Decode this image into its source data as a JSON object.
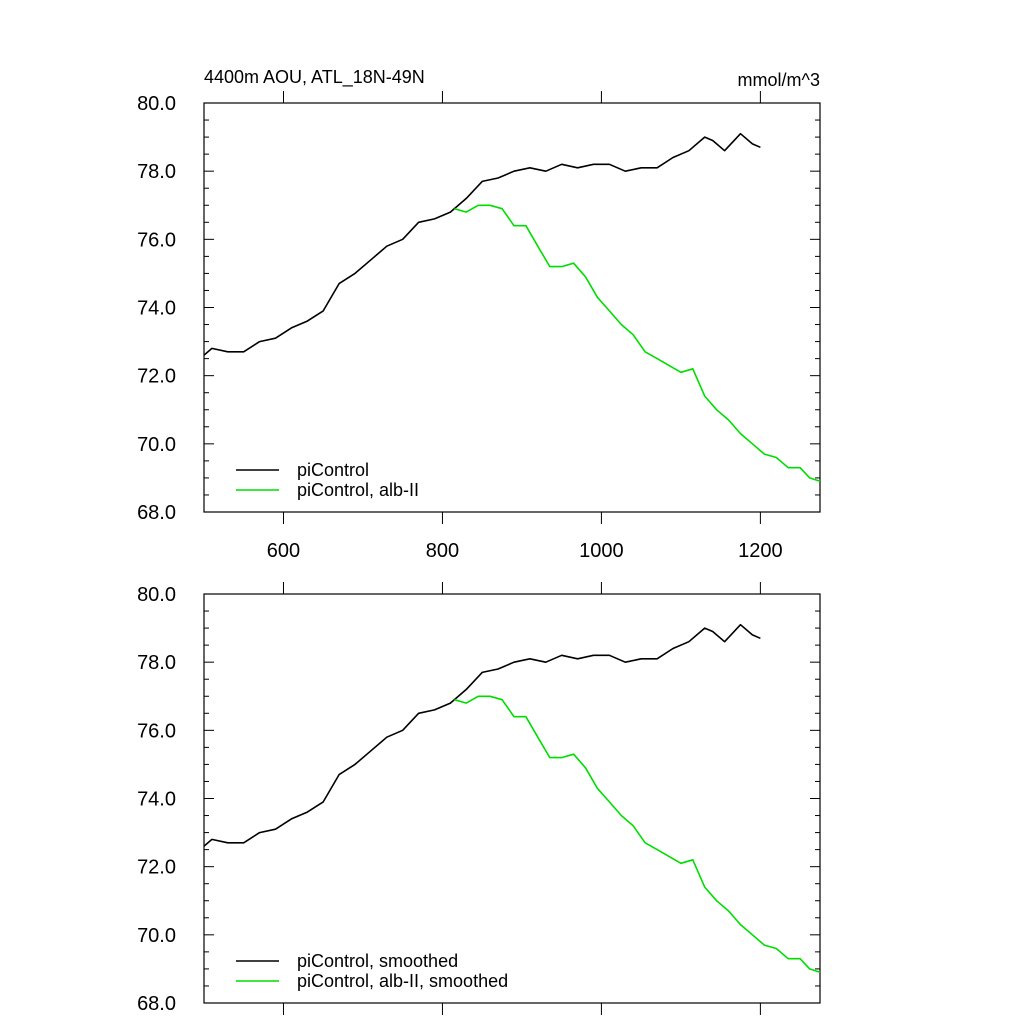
{
  "page": {
    "title_left": "4400m AOU, ATL_18N-49N",
    "title_right": "mmol/m^3"
  },
  "chart_data": [
    {
      "type": "line",
      "title": "4400m AOU, ATL_18N-49N",
      "units": "mmol/m^3",
      "xlim": [
        500,
        1275
      ],
      "ylim": [
        68,
        80
      ],
      "xticks": [
        600,
        800,
        1000,
        1200
      ],
      "xtick_labels": [
        "600",
        "800",
        "1000",
        "1200"
      ],
      "yticks": [
        68,
        70,
        72,
        74,
        76,
        78,
        80
      ],
      "ytick_labels": [
        "68.0",
        "70.0",
        "72.0",
        "74.0",
        "76.0",
        "78.0",
        "80.0"
      ],
      "legend_position": "bottom-left",
      "series": [
        {
          "name": "piControl",
          "color": "#000000",
          "x": [
            500,
            510,
            530,
            550,
            570,
            590,
            610,
            630,
            650,
            670,
            690,
            710,
            730,
            750,
            770,
            790,
            810,
            830,
            850,
            870,
            890,
            910,
            930,
            950,
            970,
            990,
            1010,
            1030,
            1050,
            1070,
            1090,
            1110,
            1130,
            1140,
            1155,
            1175,
            1190,
            1200
          ],
          "y": [
            72.6,
            72.8,
            72.7,
            72.7,
            73.0,
            73.1,
            73.4,
            73.6,
            73.9,
            74.7,
            75.0,
            75.4,
            75.8,
            76.0,
            76.5,
            76.6,
            76.8,
            77.2,
            77.7,
            77.8,
            78.0,
            78.1,
            78.0,
            78.2,
            78.1,
            78.2,
            78.2,
            78.0,
            78.1,
            78.1,
            78.4,
            78.6,
            79.0,
            78.9,
            78.6,
            79.1,
            78.8,
            78.7
          ]
        },
        {
          "name": "piControl, alb-II",
          "color": "#00dd00",
          "x": [
            815,
            830,
            845,
            860,
            875,
            890,
            905,
            920,
            935,
            950,
            965,
            980,
            995,
            1010,
            1025,
            1040,
            1055,
            1070,
            1085,
            1100,
            1115,
            1130,
            1145,
            1160,
            1175,
            1190,
            1205,
            1220,
            1235,
            1250,
            1262,
            1275
          ],
          "y": [
            76.9,
            76.8,
            77.0,
            77.0,
            76.9,
            76.4,
            76.4,
            75.8,
            75.2,
            75.2,
            75.3,
            74.9,
            74.3,
            73.9,
            73.5,
            73.2,
            72.7,
            72.5,
            72.3,
            72.1,
            72.2,
            71.4,
            71.0,
            70.7,
            70.3,
            70.0,
            69.7,
            69.6,
            69.3,
            69.3,
            69.0,
            68.9
          ]
        }
      ]
    },
    {
      "type": "line",
      "xlim": [
        500,
        1275
      ],
      "ylim": [
        68,
        80
      ],
      "xticks": [
        600,
        800,
        1000,
        1200
      ],
      "yticks": [
        68,
        70,
        72,
        74,
        76,
        78,
        80
      ],
      "ytick_labels": [
        "68.0",
        "70.0",
        "72.0",
        "74.0",
        "76.0",
        "78.0",
        "80.0"
      ],
      "legend_position": "bottom-left",
      "series": [
        {
          "name": "piControl, smoothed",
          "color": "#000000",
          "x": [
            500,
            510,
            530,
            550,
            570,
            590,
            610,
            630,
            650,
            670,
            690,
            710,
            730,
            750,
            770,
            790,
            810,
            830,
            850,
            870,
            890,
            910,
            930,
            950,
            970,
            990,
            1010,
            1030,
            1050,
            1070,
            1090,
            1110,
            1130,
            1140,
            1155,
            1175,
            1190,
            1200
          ],
          "y": [
            72.6,
            72.8,
            72.7,
            72.7,
            73.0,
            73.1,
            73.4,
            73.6,
            73.9,
            74.7,
            75.0,
            75.4,
            75.8,
            76.0,
            76.5,
            76.6,
            76.8,
            77.2,
            77.7,
            77.8,
            78.0,
            78.1,
            78.0,
            78.2,
            78.1,
            78.2,
            78.2,
            78.0,
            78.1,
            78.1,
            78.4,
            78.6,
            79.0,
            78.9,
            78.6,
            79.1,
            78.8,
            78.7
          ]
        },
        {
          "name": "piControl, alb-II, smoothed",
          "color": "#00dd00",
          "x": [
            815,
            830,
            845,
            860,
            875,
            890,
            905,
            920,
            935,
            950,
            965,
            980,
            995,
            1010,
            1025,
            1040,
            1055,
            1070,
            1085,
            1100,
            1115,
            1130,
            1145,
            1160,
            1175,
            1190,
            1205,
            1220,
            1235,
            1250,
            1262,
            1275
          ],
          "y": [
            76.9,
            76.8,
            77.0,
            77.0,
            76.9,
            76.4,
            76.4,
            75.8,
            75.2,
            75.2,
            75.3,
            74.9,
            74.3,
            73.9,
            73.5,
            73.2,
            72.7,
            72.5,
            72.3,
            72.1,
            72.2,
            71.4,
            71.0,
            70.7,
            70.3,
            70.0,
            69.7,
            69.6,
            69.3,
            69.3,
            69.0,
            68.9
          ]
        }
      ]
    }
  ]
}
